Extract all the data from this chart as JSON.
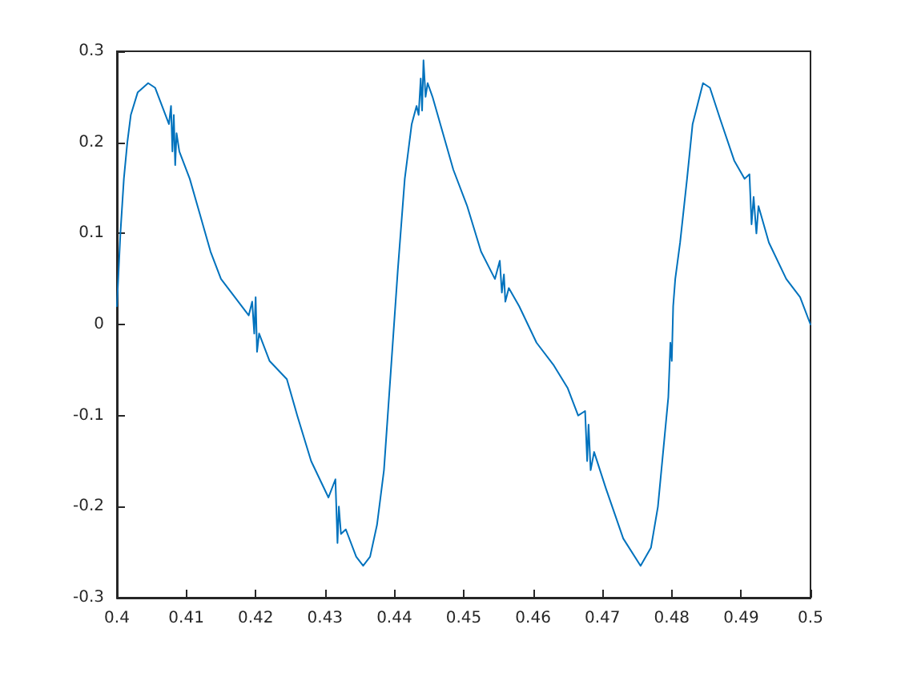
{
  "chart_data": {
    "type": "line",
    "grid": false,
    "legend": false,
    "marker": "none",
    "line_style": "solid",
    "xlim": [
      0.4,
      0.5
    ],
    "xticks": [
      0.4,
      0.41,
      0.42,
      0.43,
      0.44,
      0.45,
      0.46,
      0.47,
      0.48,
      0.49,
      0.5
    ],
    "ylim": [
      -0.3,
      0.3
    ],
    "yticks": [
      -0.3,
      -0.2,
      -0.1,
      0,
      0.1,
      0.2,
      0.3
    ],
    "series": [
      {
        "color": "#0072bd",
        "x": [
          0.4,
          0.4005,
          0.401,
          0.4015,
          0.402,
          0.403,
          0.4045,
          0.4055,
          0.4065,
          0.4075,
          0.4078,
          0.408,
          0.4082,
          0.4084,
          0.4086,
          0.409,
          0.4105,
          0.412,
          0.4135,
          0.415,
          0.417,
          0.419,
          0.4195,
          0.4198,
          0.42,
          0.4202,
          0.4205,
          0.422,
          0.4245,
          0.426,
          0.428,
          0.4305,
          0.4315,
          0.4318,
          0.432,
          0.4323,
          0.433,
          0.4345,
          0.4355,
          0.4365,
          0.4375,
          0.4385,
          0.4395,
          0.4405,
          0.4415,
          0.4425,
          0.4432,
          0.4435,
          0.4438,
          0.444,
          0.4442,
          0.4445,
          0.4448,
          0.4455,
          0.447,
          0.4485,
          0.4505,
          0.4525,
          0.4545,
          0.4552,
          0.4555,
          0.4558,
          0.456,
          0.4565,
          0.458,
          0.4605,
          0.463,
          0.465,
          0.4665,
          0.4675,
          0.4678,
          0.468,
          0.4683,
          0.4688,
          0.4705,
          0.473,
          0.4755,
          0.477,
          0.478,
          0.479,
          0.4795,
          0.4798,
          0.48,
          0.4802,
          0.4805,
          0.4812,
          0.4822,
          0.483,
          0.4845,
          0.4855,
          0.487,
          0.489,
          0.4905,
          0.4912,
          0.4915,
          0.4918,
          0.4922,
          0.4925,
          0.494,
          0.4965,
          0.4985,
          0.5
        ],
        "values": [
          0.02,
          0.1,
          0.16,
          0.2,
          0.23,
          0.255,
          0.265,
          0.26,
          0.24,
          0.22,
          0.24,
          0.19,
          0.23,
          0.175,
          0.21,
          0.19,
          0.16,
          0.12,
          0.08,
          0.05,
          0.03,
          0.01,
          0.025,
          -0.01,
          0.03,
          -0.03,
          -0.01,
          -0.04,
          -0.06,
          -0.1,
          -0.15,
          -0.19,
          -0.17,
          -0.24,
          -0.2,
          -0.23,
          -0.225,
          -0.255,
          -0.265,
          -0.255,
          -0.22,
          -0.16,
          -0.05,
          0.06,
          0.16,
          0.22,
          0.24,
          0.23,
          0.27,
          0.235,
          0.29,
          0.25,
          0.265,
          0.25,
          0.21,
          0.17,
          0.13,
          0.08,
          0.05,
          0.07,
          0.035,
          0.055,
          0.025,
          0.04,
          0.02,
          -0.02,
          -0.045,
          -0.07,
          -0.1,
          -0.095,
          -0.15,
          -0.11,
          -0.16,
          -0.14,
          -0.18,
          -0.235,
          -0.265,
          -0.245,
          -0.2,
          -0.12,
          -0.08,
          -0.02,
          -0.04,
          0.02,
          0.05,
          0.09,
          0.16,
          0.22,
          0.265,
          0.26,
          0.225,
          0.18,
          0.16,
          0.165,
          0.11,
          0.14,
          0.1,
          0.13,
          0.09,
          0.05,
          0.03,
          0.0
        ]
      }
    ]
  }
}
